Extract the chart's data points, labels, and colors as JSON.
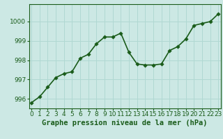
{
  "x": [
    0,
    1,
    2,
    3,
    4,
    5,
    6,
    7,
    8,
    9,
    10,
    11,
    12,
    13,
    14,
    15,
    16,
    17,
    18,
    19,
    20,
    21,
    22,
    23
  ],
  "y": [
    995.8,
    996.1,
    996.6,
    997.1,
    997.3,
    997.4,
    998.1,
    998.3,
    998.85,
    999.2,
    999.2,
    999.4,
    998.4,
    997.8,
    997.75,
    997.75,
    997.8,
    998.5,
    998.7,
    999.1,
    999.8,
    999.9,
    1000.0,
    1000.4
  ],
  "line_color": "#1a5c1a",
  "marker_color": "#1a5c1a",
  "bg_color": "#cce8e4",
  "grid_color": "#b0d8d2",
  "axis_color": "#1a5c1a",
  "title": "Graphe pression niveau de la mer (hPa)",
  "title_color": "#1a5c1a",
  "xlabel_ticks": [
    "0",
    "1",
    "2",
    "3",
    "4",
    "5",
    "6",
    "7",
    "8",
    "9",
    "10",
    "11",
    "12",
    "13",
    "14",
    "15",
    "16",
    "17",
    "18",
    "19",
    "20",
    "21",
    "22",
    "23"
  ],
  "yticks": [
    996,
    997,
    998,
    999,
    1000
  ],
  "ylim": [
    995.5,
    1000.9
  ],
  "xlim": [
    -0.3,
    23.3
  ],
  "tick_fontsize": 6.5,
  "title_fontsize": 7.5,
  "linewidth": 1.2,
  "markersize": 2.8
}
